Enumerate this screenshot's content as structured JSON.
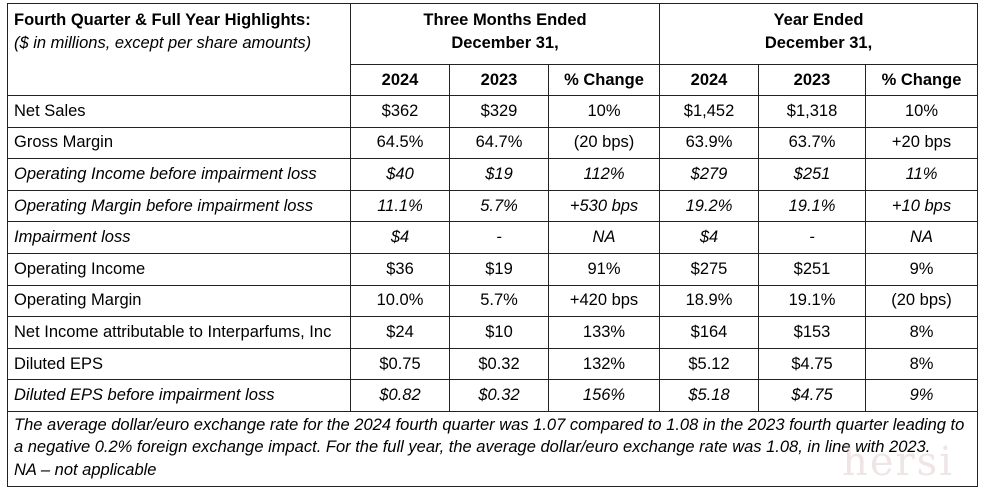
{
  "title": "Fourth Quarter & Full Year Highlights:",
  "subtitle": "($ in millions, except per share amounts)",
  "groups": [
    {
      "line1": "Three Months Ended",
      "line2": "December 31,"
    },
    {
      "line1": "Year Ended",
      "line2": "December 31,"
    }
  ],
  "columns": [
    "2024",
    "2023",
    "% Change",
    "2024",
    "2023",
    "% Change"
  ],
  "rows": [
    {
      "label": "Net Sales",
      "italic": false,
      "values": [
        "$362",
        "$329",
        "10%",
        "$1,452",
        "$1,318",
        "10%"
      ]
    },
    {
      "label": "Gross Margin",
      "italic": false,
      "values": [
        "64.5%",
        "64.7%",
        "(20 bps)",
        "63.9%",
        "63.7%",
        "+20 bps"
      ]
    },
    {
      "label": "Operating Income before impairment loss",
      "italic": true,
      "values": [
        "$40",
        "$19",
        "112%",
        "$279",
        "$251",
        "11%"
      ]
    },
    {
      "label": "Operating Margin before impairment loss",
      "italic": true,
      "values": [
        "11.1%",
        "5.7%",
        "+530 bps",
        "19.2%",
        "19.1%",
        "+10 bps"
      ]
    },
    {
      "label": "Impairment loss",
      "italic": true,
      "values": [
        "$4",
        "-",
        "NA",
        "$4",
        "-",
        "NA"
      ]
    },
    {
      "label": "Operating Income",
      "italic": false,
      "values": [
        "$36",
        "$19",
        "91%",
        "$275",
        "$251",
        "9%"
      ]
    },
    {
      "label": "Operating Margin",
      "italic": false,
      "values": [
        "10.0%",
        "5.7%",
        "+420 bps",
        "18.9%",
        "19.1%",
        "(20 bps)"
      ]
    },
    {
      "label": "Net Income attributable to Interparfums, Inc",
      "italic": false,
      "values": [
        "$24",
        "$10",
        "133%",
        "$164",
        "$153",
        "8%"
      ]
    },
    {
      "label": "Diluted EPS",
      "italic": false,
      "values": [
        "$0.75",
        "$0.32",
        "132%",
        "$5.12",
        "$4.75",
        "8%"
      ]
    },
    {
      "label": "Diluted EPS before impairment loss",
      "italic": true,
      "values": [
        "$0.82",
        "$0.32",
        "156%",
        "$5.18",
        "$4.75",
        "9%"
      ]
    }
  ],
  "footnote": {
    "line1": "The average dollar/euro exchange rate for the 2024 fourth quarter was 1.07 compared to 1.08 in the 2023 fourth quarter leading to",
    "line2": "a negative 0.2% foreign exchange impact. For the full year, the average dollar/euro exchange rate was 1.08, in line with 2023.",
    "line3": "NA – not applicable"
  },
  "watermark": "hersi"
}
